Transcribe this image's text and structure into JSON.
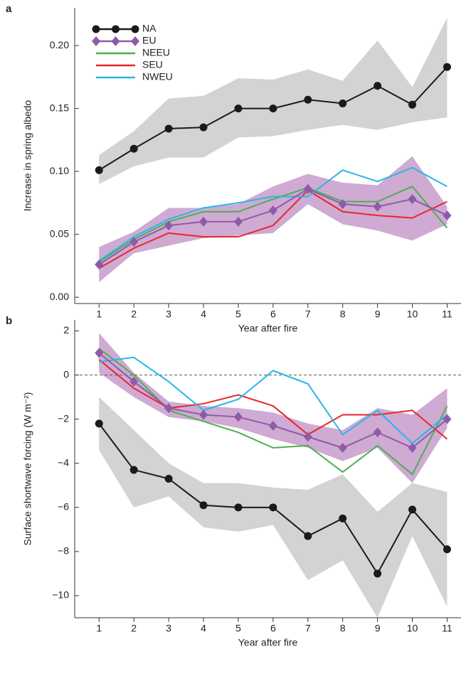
{
  "chart_data": [
    {
      "type": "line",
      "panel": "a",
      "x_label": "Year after fire",
      "y_label": "Increase in spring albedo",
      "x": [
        1,
        2,
        3,
        4,
        5,
        6,
        7,
        8,
        9,
        10,
        11
      ],
      "xlim": [
        0.3,
        11.4
      ],
      "xticks": [
        1,
        2,
        3,
        4,
        5,
        6,
        7,
        8,
        9,
        10,
        11
      ],
      "ylim": [
        -0.005,
        0.23
      ],
      "yticks": [
        {
          "value": 0,
          "label": "0.00"
        },
        0.05,
        {
          "value": 0.1,
          "label": "0.10"
        },
        0.15,
        {
          "value": 0.2,
          "label": "0.20"
        }
      ],
      "legend": "upper left",
      "series": [
        {
          "name": "NA",
          "color": "#1a1a1a",
          "marker": "circle",
          "band_color": "#d2d3d4",
          "values": [
            0.101,
            0.118,
            0.134,
            0.135,
            0.15,
            0.15,
            0.157,
            0.154,
            0.168,
            0.153,
            0.183
          ],
          "upper": [
            0.113,
            0.132,
            0.158,
            0.16,
            0.174,
            0.173,
            0.181,
            0.172,
            0.204,
            0.167,
            0.222
          ],
          "lower": [
            0.09,
            0.104,
            0.111,
            0.111,
            0.127,
            0.128,
            0.133,
            0.137,
            0.133,
            0.139,
            0.143
          ]
        },
        {
          "name": "EU",
          "color": "#8e5ba8",
          "marker": "diamond",
          "band_color": "#cfaad2",
          "values": [
            0.026,
            0.044,
            0.057,
            0.06,
            0.06,
            0.069,
            0.086,
            0.074,
            0.072,
            0.078,
            0.065
          ],
          "upper": [
            0.04,
            0.052,
            0.071,
            0.071,
            0.074,
            0.088,
            0.098,
            0.091,
            0.089,
            0.112,
            0.072
          ],
          "lower": [
            0.012,
            0.035,
            0.041,
            0.047,
            0.049,
            0.051,
            0.074,
            0.058,
            0.053,
            0.045,
            0.058
          ]
        },
        {
          "name": "NEEU",
          "color": "#4caf50",
          "values": [
            0.028,
            0.046,
            0.06,
            0.068,
            0.068,
            0.078,
            0.087,
            0.076,
            0.076,
            0.088,
            0.055
          ]
        },
        {
          "name": "SEU",
          "color": "#e8262a",
          "values": [
            0.023,
            0.039,
            0.051,
            0.048,
            0.048,
            0.057,
            0.085,
            0.068,
            0.065,
            0.063,
            0.076
          ]
        },
        {
          "name": "NWEU",
          "color": "#29b6e8",
          "values": [
            0.029,
            0.048,
            0.062,
            0.071,
            0.075,
            0.08,
            0.08,
            0.101,
            0.092,
            0.103,
            0.088
          ]
        }
      ]
    },
    {
      "type": "line",
      "panel": "b",
      "x_label": "Year after fire",
      "y_label": "Surface shortwave forcing (W m⁻²)",
      "x": [
        1,
        2,
        3,
        4,
        5,
        6,
        7,
        8,
        9,
        10,
        11
      ],
      "xlim": [
        0.3,
        11.4
      ],
      "xticks": [
        1,
        2,
        3,
        4,
        5,
        6,
        7,
        8,
        9,
        10,
        11
      ],
      "ylim": [
        -11,
        2.5
      ],
      "yticks": [
        {
          "value": -10,
          "label": "−10"
        },
        {
          "value": -8,
          "label": "−8"
        },
        {
          "value": -6,
          "label": "−6"
        },
        {
          "value": -4,
          "label": "−4"
        },
        {
          "value": -2,
          "label": "−2"
        },
        0,
        2
      ],
      "zero_line": true,
      "series": [
        {
          "color": "#1a1a1a",
          "marker": "circle",
          "band_color": "#d2d3d4",
          "values": [
            -2.2,
            -4.3,
            -4.7,
            -5.9,
            -6.0,
            -6.0,
            -7.3,
            -6.5,
            -9.0,
            -6.1,
            -7.9
          ],
          "upper": [
            -1.0,
            -2.5,
            -4.0,
            -4.9,
            -4.9,
            -5.1,
            -5.2,
            -4.5,
            -6.2,
            -4.9,
            -5.3
          ],
          "lower": [
            -3.4,
            -6.0,
            -5.5,
            -6.9,
            -7.1,
            -6.8,
            -9.3,
            -8.4,
            -11.0,
            -7.3,
            -10.5
          ]
        },
        {
          "color": "#8e5ba8",
          "marker": "diamond",
          "band_color": "#cfaad2",
          "values": [
            1.0,
            -0.3,
            -1.5,
            -1.8,
            -1.9,
            -2.3,
            -2.8,
            -3.3,
            -2.6,
            -3.3,
            -2.0
          ],
          "upper": [
            1.9,
            0.1,
            -1.2,
            -1.4,
            -1.5,
            -1.7,
            -2.2,
            -2.5,
            -1.5,
            -1.8,
            -0.6
          ],
          "lower": [
            0.1,
            -1.0,
            -1.9,
            -2.1,
            -2.4,
            -2.9,
            -3.3,
            -3.9,
            -3.3,
            -4.9,
            -2.4
          ]
        },
        {
          "color": "#4caf50",
          "values": [
            1.2,
            0.0,
            -1.6,
            -2.1,
            -2.6,
            -3.3,
            -3.2,
            -4.4,
            -3.2,
            -4.5,
            -1.4
          ]
        },
        {
          "color": "#e8262a",
          "values": [
            0.7,
            -0.6,
            -1.5,
            -1.3,
            -0.9,
            -1.4,
            -2.7,
            -1.8,
            -1.8,
            -1.6,
            -2.9
          ]
        },
        {
          "color": "#29b6e8",
          "values": [
            0.6,
            0.8,
            -0.3,
            -1.6,
            -1.1,
            0.2,
            -0.4,
            -2.7,
            -1.6,
            -3.1,
            -1.8
          ]
        }
      ]
    }
  ]
}
